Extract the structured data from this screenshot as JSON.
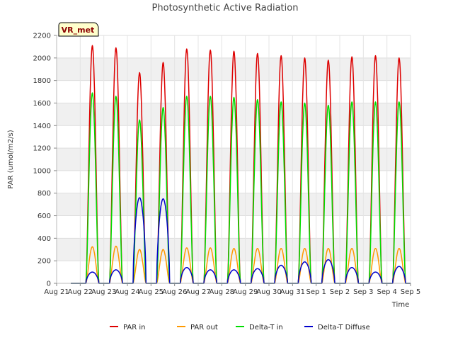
{
  "chart_data": {
    "type": "line",
    "title": "Photosynthetic Active Radiation",
    "xlabel": "Time",
    "ylabel": "PAR (umol/m2/s)",
    "ylim": [
      0,
      2200
    ],
    "yticks": [
      0,
      200,
      400,
      600,
      800,
      1000,
      1200,
      1400,
      1600,
      1800,
      2000,
      2200
    ],
    "xlim": [
      0,
      15
    ],
    "xtick_labels": [
      "Aug 21",
      "Aug 22",
      "Aug 23",
      "Aug 24",
      "Aug 25",
      "Aug 26",
      "Aug 27",
      "Aug 28",
      "Aug 29",
      "Aug 30",
      "Aug 31",
      "Sep 1",
      "Sep 2",
      "Sep 3",
      "Sep 4",
      "Sep 5"
    ],
    "site_label": "VR_met",
    "legend": [
      "PAR in",
      "PAR out",
      "Delta-T in",
      "Delta-T Diffuse"
    ],
    "series": [
      {
        "name": "PAR in",
        "color": "#dd0000",
        "daily_peaks": [
          2110,
          2090,
          1870,
          1960,
          2080,
          2070,
          2060,
          2040,
          2020,
          2000,
          1980,
          2010,
          2020,
          2000
        ]
      },
      {
        "name": "PAR out",
        "color": "#ff9900",
        "daily_peaks": [
          325,
          330,
          300,
          300,
          315,
          315,
          310,
          310,
          310,
          310,
          310,
          310,
          310,
          310
        ]
      },
      {
        "name": "Delta-T in",
        "color": "#00dd00",
        "daily_peaks": [
          1690,
          1660,
          1450,
          1560,
          1660,
          1660,
          1650,
          1630,
          1610,
          1600,
          1580,
          1610,
          1610,
          1610
        ]
      },
      {
        "name": "Delta-T Diffuse",
        "color": "#0000cc",
        "daily_peaks": [
          100,
          120,
          760,
          750,
          140,
          120,
          120,
          130,
          160,
          190,
          210,
          140,
          100,
          150
        ]
      }
    ]
  }
}
